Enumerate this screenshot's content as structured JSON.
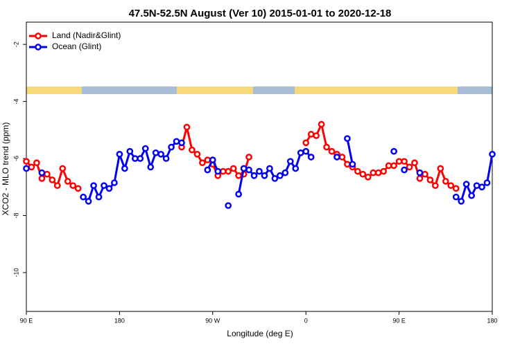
{
  "chart_data": {
    "type": "line",
    "title": "47.5N-52.5N August (Ver 10)   2015-01-01 to 2020-12-18",
    "x_label": "Longitude (deg E)",
    "y_label": "XCO2 - MLO trend (ppm)",
    "x": [
      90,
      95,
      100,
      105,
      110,
      115,
      120,
      125,
      130,
      135,
      140,
      145,
      150,
      155,
      160,
      165,
      170,
      175,
      180,
      185,
      190,
      195,
      200,
      205,
      210,
      215,
      220,
      225,
      230,
      235,
      240,
      245,
      250,
      255,
      260,
      265,
      270,
      275,
      280,
      285,
      290,
      295,
      300,
      305,
      310,
      315,
      320,
      325,
      330,
      335,
      340,
      345,
      350,
      355,
      360,
      365,
      370,
      375,
      380,
      385,
      390,
      395,
      400,
      405,
      410,
      415,
      420,
      425,
      430,
      435,
      440,
      445,
      450,
      455,
      460,
      465,
      470,
      475,
      480,
      485,
      490,
      495,
      500,
      505,
      510,
      515,
      520,
      525,
      530,
      535,
      540
    ],
    "series": [
      {
        "name": "Land (Nadir&Glint)",
        "color": "#ff0000",
        "values": [
          -6.1,
          -6.3,
          -6.15,
          -6.7,
          -6.55,
          -6.75,
          -6.95,
          -6.35,
          -6.8,
          -6.95,
          -7.05,
          null,
          null,
          null,
          null,
          null,
          null,
          null,
          null,
          null,
          null,
          null,
          null,
          null,
          null,
          null,
          null,
          null,
          null,
          null,
          -5.6,
          -4.9,
          -5.7,
          -5.85,
          -6.15,
          -6.05,
          -6.2,
          -6.6,
          -6.45,
          -6.45,
          -6.35,
          -6.6,
          -6.55,
          -5.95,
          null,
          null,
          null,
          null,
          null,
          null,
          null,
          null,
          null,
          null,
          -5.45,
          -5.15,
          -5.2,
          -4.8,
          -5.6,
          -5.75,
          -5.85,
          -5.95,
          -6.2,
          -6.3,
          -6.45,
          -6.55,
          -6.65,
          -6.5,
          -6.5,
          -6.45,
          -6.25,
          -6.25,
          -6.1,
          -6.1,
          -6.3,
          -6.15,
          -6.7,
          -6.55,
          -6.75,
          -6.95,
          -6.35,
          -6.8,
          -6.95,
          -7.05,
          null,
          null,
          null,
          null,
          null,
          null,
          null
        ]
      },
      {
        "name": "Ocean (Glint)",
        "color": "#0000ee",
        "values": [
          -6.35,
          null,
          null,
          -6.5,
          null,
          null,
          null,
          null,
          null,
          null,
          null,
          -7.35,
          -7.5,
          -6.95,
          -7.35,
          -6.95,
          -7.05,
          -6.85,
          -5.85,
          -6.35,
          -5.75,
          -6.0,
          -6.0,
          -5.65,
          -6.3,
          -5.8,
          -5.85,
          -6.0,
          -5.6,
          -5.4,
          -5.45,
          null,
          null,
          null,
          null,
          -6.4,
          -6.05,
          -6.45,
          null,
          -7.65,
          null,
          -7.25,
          -6.35,
          -6.4,
          -6.6,
          -6.45,
          -6.6,
          -6.35,
          -6.7,
          -6.6,
          -6.5,
          -6.1,
          -6.35,
          -5.8,
          -5.75,
          -5.95,
          null,
          null,
          null,
          null,
          -5.95,
          null,
          -5.3,
          -6.2,
          null,
          null,
          null,
          null,
          null,
          null,
          null,
          -5.75,
          null,
          -6.4,
          null,
          null,
          -6.5,
          null,
          null,
          null,
          null,
          null,
          null,
          -7.35,
          -7.5,
          -6.9,
          -7.3,
          -6.95,
          -7.0,
          -6.85,
          -5.85
        ]
      }
    ],
    "xlim": [
      90,
      540
    ],
    "xticks": [
      {
        "value": 90,
        "label": "90 E"
      },
      {
        "value": 180,
        "label": "180"
      },
      {
        "value": 270,
        "label": "90 W"
      },
      {
        "value": 360,
        "label": "0"
      },
      {
        "value": 450,
        "label": "90 E"
      },
      {
        "value": 540,
        "label": "180"
      }
    ],
    "ylim": [
      -11.36,
      -1.22
    ],
    "yticks": [
      -2,
      -4,
      -6,
      -8,
      -10
    ],
    "legend": "top-left"
  }
}
